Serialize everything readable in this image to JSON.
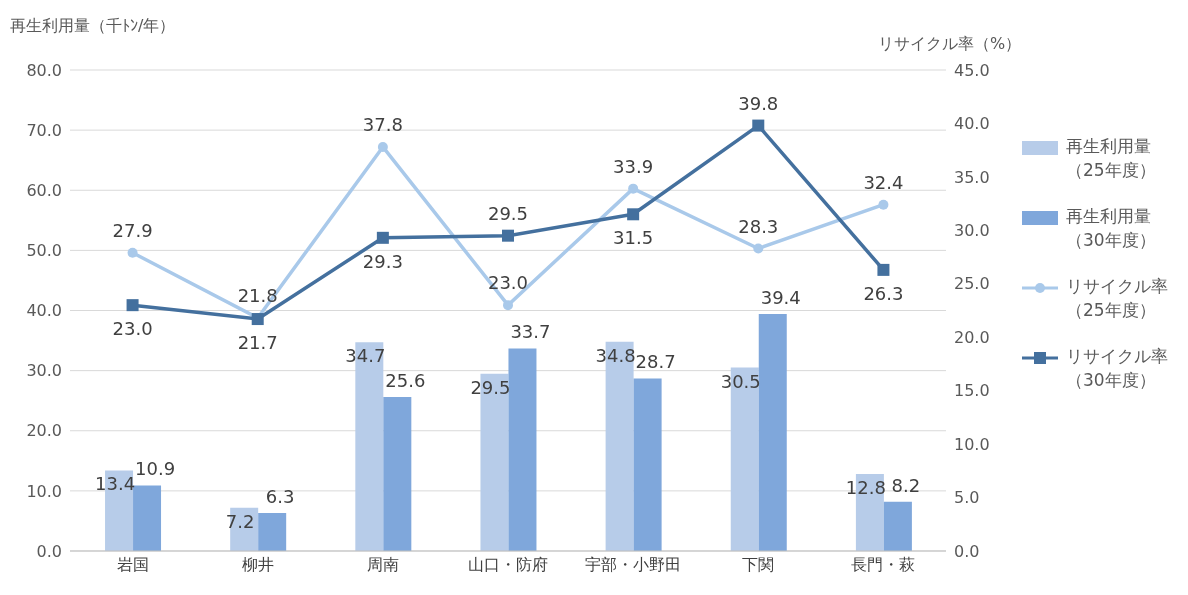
{
  "chart_data": {
    "type": "bar",
    "ylabel": "再生利用量（千ﾄﾝ/年）",
    "y2label": "リサイクル率（%）",
    "categories": [
      "岩国",
      "柳井",
      "周南",
      "山口・防府",
      "宇部・小野田",
      "下関",
      "長門・萩"
    ],
    "series": [
      {
        "name": "再生利用量（25年度）",
        "color": "#b7cce9",
        "values": [
          13.4,
          7.2,
          34.7,
          29.5,
          34.8,
          30.5,
          12.8
        ],
        "value_labels": [
          "13.4",
          "7.2",
          "34.7",
          "29.5",
          "34.8",
          "30.5",
          "12.8"
        ]
      },
      {
        "name": "再生利用量（30年度）",
        "color": "#7fa7db",
        "values": [
          10.9,
          6.3,
          25.6,
          33.7,
          28.7,
          39.4,
          8.2
        ],
        "value_labels": [
          "10.9",
          "6.3",
          "25.6",
          "33.7",
          "28.7",
          "39.4",
          "8.2"
        ]
      },
      {
        "name": "リサイクル率（25年度）",
        "type": "line",
        "axis": "y2",
        "marker": "circle",
        "color": "#a9c9ea",
        "values": [
          27.9,
          21.8,
          37.8,
          23.0,
          33.9,
          28.3,
          32.4
        ],
        "value_labels": [
          "27.9",
          "21.8",
          "37.8",
          "23.0",
          "33.9",
          "28.3",
          "32.4"
        ]
      },
      {
        "name": "リサイクル率（30年度）",
        "type": "line",
        "axis": "y2",
        "marker": "square",
        "color": "#44709e",
        "values": [
          23.0,
          21.7,
          29.3,
          29.5,
          31.5,
          39.8,
          26.3
        ],
        "value_labels": [
          "23.0",
          "21.7",
          "29.3",
          "29.5",
          "31.5",
          "39.8",
          "26.3"
        ]
      }
    ],
    "ylim": [
      0,
      80
    ],
    "yticks": [
      {
        "value": 0,
        "label": "0.0"
      },
      {
        "value": 10,
        "label": "10.0"
      },
      {
        "value": 20,
        "label": "20.0"
      },
      {
        "value": 30,
        "label": "30.0"
      },
      {
        "value": 40,
        "label": "40.0"
      },
      {
        "value": 50,
        "label": "50.0"
      },
      {
        "value": 60,
        "label": "60.0"
      },
      {
        "value": 70,
        "label": "70.0"
      },
      {
        "value": 80,
        "label": "80.0"
      }
    ],
    "y2lim": [
      0,
      45
    ],
    "y2ticks": [
      {
        "value": 0,
        "label": "0.0"
      },
      {
        "value": 5,
        "label": "5.0"
      },
      {
        "value": 10,
        "label": "10.0"
      },
      {
        "value": 15,
        "label": "15.0"
      },
      {
        "value": 20,
        "label": "20.0"
      },
      {
        "value": 25,
        "label": "25.0"
      },
      {
        "value": 30,
        "label": "30.0"
      },
      {
        "value": 35,
        "label": "35.0"
      },
      {
        "value": 40,
        "label": "40.0"
      },
      {
        "value": 45,
        "label": "45.0"
      }
    ],
    "grid": "y",
    "legend": "right"
  }
}
